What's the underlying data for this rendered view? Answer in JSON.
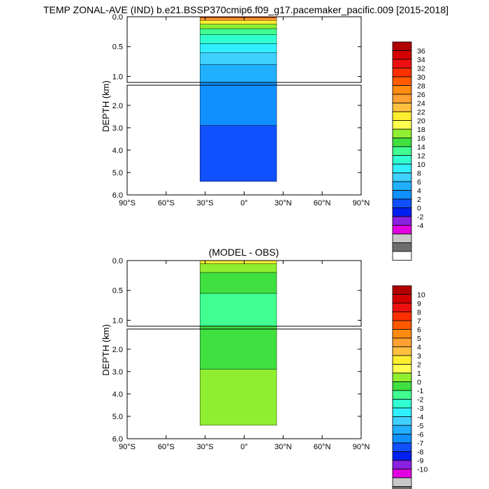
{
  "title": "TEMP ZONAL-AVE (IND) b.e21.BSSP370cmip6.f09_g17.pacemaker_pacific.009 [2015-2018]",
  "chart_data": [
    {
      "type": "heatmap",
      "title": "",
      "ylabel": "DEPTH (km)",
      "x_ticks": [
        "90°S",
        "60°S",
        "30°S",
        "0°",
        "30°N",
        "60°N",
        "90°N"
      ],
      "x_tick_values": [
        -90,
        -60,
        -30,
        0,
        30,
        60,
        90
      ],
      "xlim": [
        -90,
        90
      ],
      "upper_panel": {
        "ylim": [
          0.0,
          1.1
        ],
        "y_ticks": [
          "0.0",
          "0.5",
          "1.0"
        ],
        "y_tick_values": [
          0.0,
          0.5,
          1.0
        ]
      },
      "lower_panel": {
        "ylim": [
          1.1,
          6.0
        ],
        "y_ticks": [
          "2.0",
          "3.0",
          "4.0",
          "5.0",
          "6.0"
        ],
        "y_tick_values": [
          2.0,
          3.0,
          4.0,
          5.0,
          6.0
        ]
      },
      "data_extent": {
        "lat": [
          -34,
          25
        ],
        "max_depth_km": 5.4
      },
      "colorbar": {
        "labels": [
          "36",
          "34",
          "32",
          "30",
          "28",
          "26",
          "24",
          "22",
          "20",
          "18",
          "16",
          "14",
          "12",
          "10",
          "8",
          "6",
          "4",
          "2",
          "0",
          "-2",
          "-4"
        ],
        "colors": [
          "#b00000",
          "#d40000",
          "#ee1010",
          "#ff3000",
          "#ff5a00",
          "#ff8c10",
          "#ffa030",
          "#ffc040",
          "#ffee30",
          "#ffff50",
          "#90ee30",
          "#40e040",
          "#40ff90",
          "#30ffd0",
          "#30f0ff",
          "#40d0ff",
          "#20b0ff",
          "#1090ff",
          "#1050ff",
          "#0020f0",
          "#8a20e0",
          "#e000e0",
          "#c8c8c8",
          "#6e6e6e",
          "#ffffff"
        ]
      },
      "bands": [
        {
          "value": 28,
          "depth_km": [
            0.0,
            0.02
          ]
        },
        {
          "value": 24,
          "depth_km": [
            0.02,
            0.06
          ]
        },
        {
          "value": 20,
          "depth_km": [
            0.06,
            0.12
          ]
        },
        {
          "value": 16,
          "depth_km": [
            0.12,
            0.2
          ]
        },
        {
          "value": 13,
          "depth_km": [
            0.2,
            0.3
          ]
        },
        {
          "value": 11,
          "depth_km": [
            0.3,
            0.45
          ]
        },
        {
          "value": 9,
          "depth_km": [
            0.45,
            0.6
          ]
        },
        {
          "value": 7,
          "depth_km": [
            0.6,
            0.8
          ]
        },
        {
          "value": 5,
          "depth_km": [
            0.8,
            1.1
          ]
        },
        {
          "value": 3,
          "depth_km": [
            1.1,
            2.9
          ]
        },
        {
          "value": 1,
          "depth_km": [
            2.9,
            5.4
          ]
        }
      ]
    },
    {
      "type": "heatmap",
      "title": "(MODEL - OBS)",
      "ylabel": "DEPTH (km)",
      "x_ticks": [
        "90°S",
        "60°S",
        "30°S",
        "0°",
        "30°N",
        "60°N",
        "90°N"
      ],
      "x_tick_values": [
        -90,
        -60,
        -30,
        0,
        30,
        60,
        90
      ],
      "xlim": [
        -90,
        90
      ],
      "upper_panel": {
        "ylim": [
          0.0,
          1.1
        ],
        "y_ticks": [
          "0.0",
          "0.5",
          "1.0"
        ],
        "y_tick_values": [
          0.0,
          0.5,
          1.0
        ]
      },
      "lower_panel": {
        "ylim": [
          1.1,
          6.0
        ],
        "y_ticks": [
          "2.0",
          "3.0",
          "4.0",
          "5.0",
          "6.0"
        ],
        "y_tick_values": [
          2.0,
          3.0,
          4.0,
          5.0,
          6.0
        ]
      },
      "data_extent": {
        "lat": [
          -34,
          25
        ],
        "max_depth_km": 5.4
      },
      "colorbar": {
        "labels": [
          "10",
          "9",
          "8",
          "7",
          "6",
          "5",
          "4",
          "3",
          "2",
          "1",
          "0",
          "-1",
          "-2",
          "-3",
          "-4",
          "-5",
          "-6",
          "-7",
          "-8",
          "-9",
          "-10"
        ],
        "colors": [
          "#b00000",
          "#d40000",
          "#ee1010",
          "#ff3000",
          "#ff5a00",
          "#ff8c10",
          "#ffa030",
          "#ffc040",
          "#ffee30",
          "#ffff50",
          "#90ee30",
          "#40e040",
          "#40ff90",
          "#30ffd0",
          "#30f0ff",
          "#40d0ff",
          "#20b0ff",
          "#1090ff",
          "#1050ff",
          "#0020f0",
          "#8a20e0",
          "#e000e0",
          "#c8c8c8",
          "#6e6e6e",
          "#ffffff"
        ]
      },
      "bands": [
        {
          "value": 2.5,
          "depth_km": [
            0.0,
            0.05
          ]
        },
        {
          "value": 0.5,
          "depth_km": [
            0.05,
            0.2
          ]
        },
        {
          "value": -0.5,
          "depth_km": [
            0.2,
            0.55
          ]
        },
        {
          "value": -1.5,
          "depth_km": [
            0.55,
            1.1
          ]
        },
        {
          "value": -0.5,
          "depth_km": [
            1.1,
            2.9
          ]
        },
        {
          "value": 0.5,
          "depth_km": [
            2.9,
            5.4
          ]
        }
      ]
    }
  ]
}
